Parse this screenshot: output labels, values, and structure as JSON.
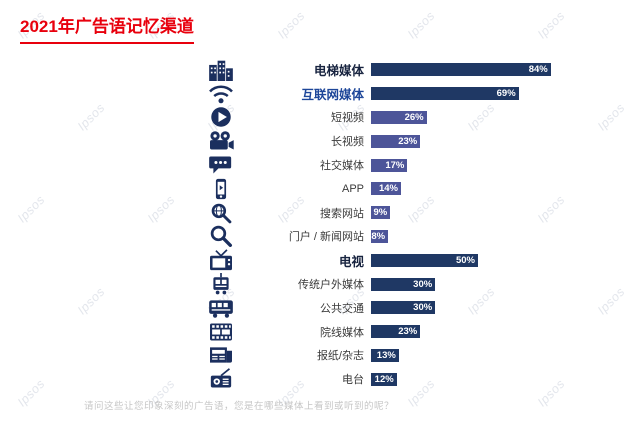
{
  "page": {
    "watermark_text": "Ipsos",
    "footnote": "请问这些让您印象深刻的广告语，您是在哪些媒体上看到或听到的呢？"
  },
  "chart_data": {
    "type": "bar",
    "orientation": "horizontal",
    "title": "2021年广告语记忆渠道",
    "unit": "%",
    "xlim": [
      0,
      100
    ],
    "legend": "none",
    "grid": "off",
    "palette": {
      "primary": "#1f3864",
      "secondary": "#4d5599",
      "title_red": "#e8000d",
      "value_text": "#ffffff"
    },
    "rows": [
      {
        "label": "电梯媒体",
        "value": 84,
        "value_label": "84%",
        "icon": "elevator-building-icon",
        "shade": "primary",
        "emphasis": "bold-dark"
      },
      {
        "label": "互联网媒体",
        "value": 69,
        "value_label": "69%",
        "icon": "wifi-icon",
        "shade": "primary",
        "emphasis": "bold-blue"
      },
      {
        "label": "短视频",
        "value": 26,
        "value_label": "26%",
        "icon": "play-button-icon",
        "shade": "secondary",
        "emphasis": "normal"
      },
      {
        "label": "长视频",
        "value": 23,
        "value_label": "23%",
        "icon": "video-camera-icon",
        "shade": "secondary",
        "emphasis": "normal"
      },
      {
        "label": "社交媒体",
        "value": 17,
        "value_label": "17%",
        "icon": "chat-bubble-icon",
        "shade": "secondary",
        "emphasis": "normal"
      },
      {
        "label": "APP",
        "value": 14,
        "value_label": "14%",
        "icon": "smartphone-icon",
        "shade": "secondary",
        "emphasis": "normal"
      },
      {
        "label": "搜索网站",
        "value": 9,
        "value_label": "9%",
        "icon": "search-globe-icon",
        "shade": "secondary",
        "emphasis": "normal"
      },
      {
        "label": "门户 / 新闻网站",
        "value": 8,
        "value_label": "8%",
        "icon": "magnifier-icon",
        "shade": "secondary",
        "emphasis": "normal"
      },
      {
        "label": "电视",
        "value": 50,
        "value_label": "50%",
        "icon": "tv-icon",
        "shade": "primary",
        "emphasis": "bold-dark"
      },
      {
        "label": "传统户外媒体",
        "value": 30,
        "value_label": "30%",
        "icon": "tram-icon",
        "shade": "primary",
        "emphasis": "normal"
      },
      {
        "label": "公共交通",
        "value": 30,
        "value_label": "30%",
        "icon": "bus-icon",
        "shade": "primary",
        "emphasis": "normal"
      },
      {
        "label": "院线媒体",
        "value": 23,
        "value_label": "23%",
        "icon": "film-strip-icon",
        "shade": "primary",
        "emphasis": "normal"
      },
      {
        "label": "报纸/杂志",
        "value": 13,
        "value_label": "13%",
        "icon": "newspaper-icon",
        "shade": "primary",
        "emphasis": "normal"
      },
      {
        "label": "电台",
        "value": 12,
        "value_label": "12%",
        "icon": "radio-icon",
        "shade": "primary",
        "emphasis": "normal"
      }
    ]
  }
}
